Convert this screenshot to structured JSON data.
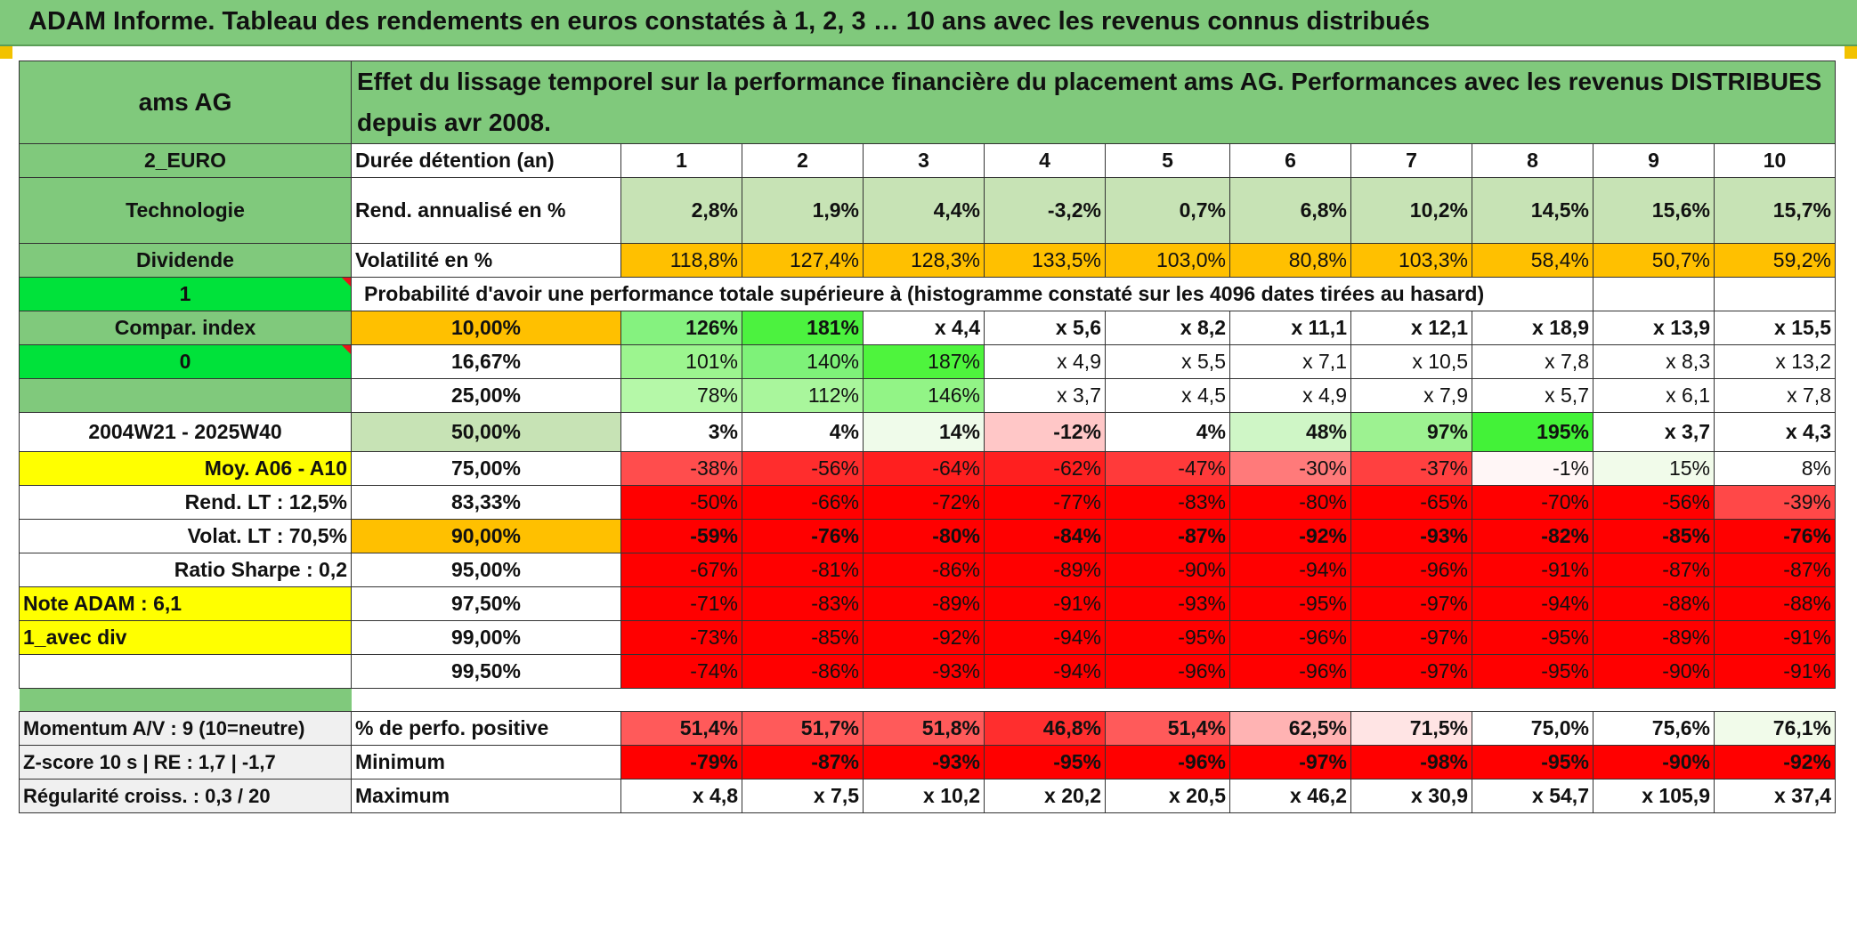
{
  "banner": "ADAM Informe. Tableau des rendements en euros constatés à 1, 2, 3 … 10 ans avec les revenus connus distribués",
  "left": {
    "name": "ams AG",
    "currency": "2_EURO",
    "sector": "Technologie",
    "dividend": "Dividende",
    "flag1": "1",
    "compar": "Compar. index",
    "flag0": "0",
    "period": "2004W21 - 2025W40",
    "moy": "Moy. A06 - A10",
    "rend_lt": "Rend. LT :    12,5%",
    "volat_lt": "Volat. LT :    70,5%",
    "sharpe": "Ratio Sharpe :    0,2",
    "note": "Note ADAM : 6,1",
    "div_mode": "1_avec div",
    "momentum": "Momentum A/V : 9 (10=neutre)",
    "zscore": "Z-score 10 s | RE : 1,7 | -1,7",
    "regularite": "Régularité croiss. : 0,3 / 20"
  },
  "description": "Effet du lissage temporel sur la performance financière du placement ams AG. Performances avec les revenus DISTRIBUES depuis avr 2008.",
  "duration_label": "Durée détention (an)",
  "years": [
    "1",
    "2",
    "3",
    "4",
    "5",
    "6",
    "7",
    "8",
    "9",
    "10"
  ],
  "rend_label": "Rend. annualisé en %",
  "rend": [
    "2,8%",
    "1,9%",
    "4,4%",
    "-3,2%",
    "0,7%",
    "6,8%",
    "10,2%",
    "14,5%",
    "15,6%",
    "15,7%"
  ],
  "vol_label": "Volatilité en %",
  "vol": [
    "118,8%",
    "127,4%",
    "128,3%",
    "133,5%",
    "103,0%",
    "80,8%",
    "103,3%",
    "58,4%",
    "50,7%",
    "59,2%"
  ],
  "prob_label": "Probabilité d'avoir une performance totale supérieure à (histogramme constaté sur les 4096 dates tirées au hasard)",
  "percentiles": [
    {
      "p": "10,00%",
      "v": [
        "126%",
        "181%",
        "x 4,4",
        "x 5,6",
        "x 8,2",
        "x 11,1",
        "x 12,1",
        "x 18,9",
        "x 13,9",
        "x 15,5"
      ]
    },
    {
      "p": "16,67%",
      "v": [
        "101%",
        "140%",
        "187%",
        "x 4,9",
        "x 5,5",
        "x 7,1",
        "x 10,5",
        "x 7,8",
        "x 8,3",
        "x 13,2"
      ]
    },
    {
      "p": "25,00%",
      "v": [
        "78%",
        "112%",
        "146%",
        "x 3,7",
        "x 4,5",
        "x 4,9",
        "x 7,9",
        "x 5,7",
        "x 6,1",
        "x 7,8"
      ]
    },
    {
      "p": "50,00%",
      "v": [
        "3%",
        "4%",
        "14%",
        "-12%",
        "4%",
        "48%",
        "97%",
        "195%",
        "x 3,7",
        "x 4,3"
      ]
    },
    {
      "p": "75,00%",
      "v": [
        "-38%",
        "-56%",
        "-64%",
        "-62%",
        "-47%",
        "-30%",
        "-37%",
        "-1%",
        "15%",
        "8%"
      ]
    },
    {
      "p": "83,33%",
      "v": [
        "-50%",
        "-66%",
        "-72%",
        "-77%",
        "-83%",
        "-80%",
        "-65%",
        "-70%",
        "-56%",
        "-39%"
      ]
    },
    {
      "p": "90,00%",
      "v": [
        "-59%",
        "-76%",
        "-80%",
        "-84%",
        "-87%",
        "-92%",
        "-93%",
        "-82%",
        "-85%",
        "-76%"
      ]
    },
    {
      "p": "95,00%",
      "v": [
        "-67%",
        "-81%",
        "-86%",
        "-89%",
        "-90%",
        "-94%",
        "-96%",
        "-91%",
        "-87%",
        "-87%"
      ]
    },
    {
      "p": "97,50%",
      "v": [
        "-71%",
        "-83%",
        "-89%",
        "-91%",
        "-93%",
        "-95%",
        "-97%",
        "-94%",
        "-88%",
        "-88%"
      ]
    },
    {
      "p": "99,00%",
      "v": [
        "-73%",
        "-85%",
        "-92%",
        "-94%",
        "-95%",
        "-96%",
        "-97%",
        "-95%",
        "-89%",
        "-91%"
      ]
    },
    {
      "p": "99,50%",
      "v": [
        "-74%",
        "-86%",
        "-93%",
        "-94%",
        "-96%",
        "-96%",
        "-97%",
        "-95%",
        "-90%",
        "-91%"
      ]
    }
  ],
  "pos_label": "% de perfo. positive",
  "pos": [
    "51,4%",
    "51,7%",
    "51,8%",
    "46,8%",
    "51,4%",
    "62,5%",
    "71,5%",
    "75,0%",
    "75,6%",
    "76,1%"
  ],
  "min_label": "Minimum",
  "min": [
    "-79%",
    "-87%",
    "-93%",
    "-95%",
    "-96%",
    "-97%",
    "-98%",
    "-95%",
    "-90%",
    "-92%"
  ],
  "max_label": "Maximum",
  "max": [
    "x 4,8",
    "x 7,5",
    "x 10,2",
    "x 20,2",
    "x 20,5",
    "x 46,2",
    "x 30,9",
    "x 54,7",
    "x 105,9",
    "x 37,4"
  ],
  "colors": {
    "header_green": "#80c97c",
    "light_green": "#c7e3b5",
    "orange": "#ffc000",
    "yellow": "#ffff00",
    "bright_green": "#00e23a",
    "red": "#ff0000",
    "label_red": "#e8161a"
  }
}
